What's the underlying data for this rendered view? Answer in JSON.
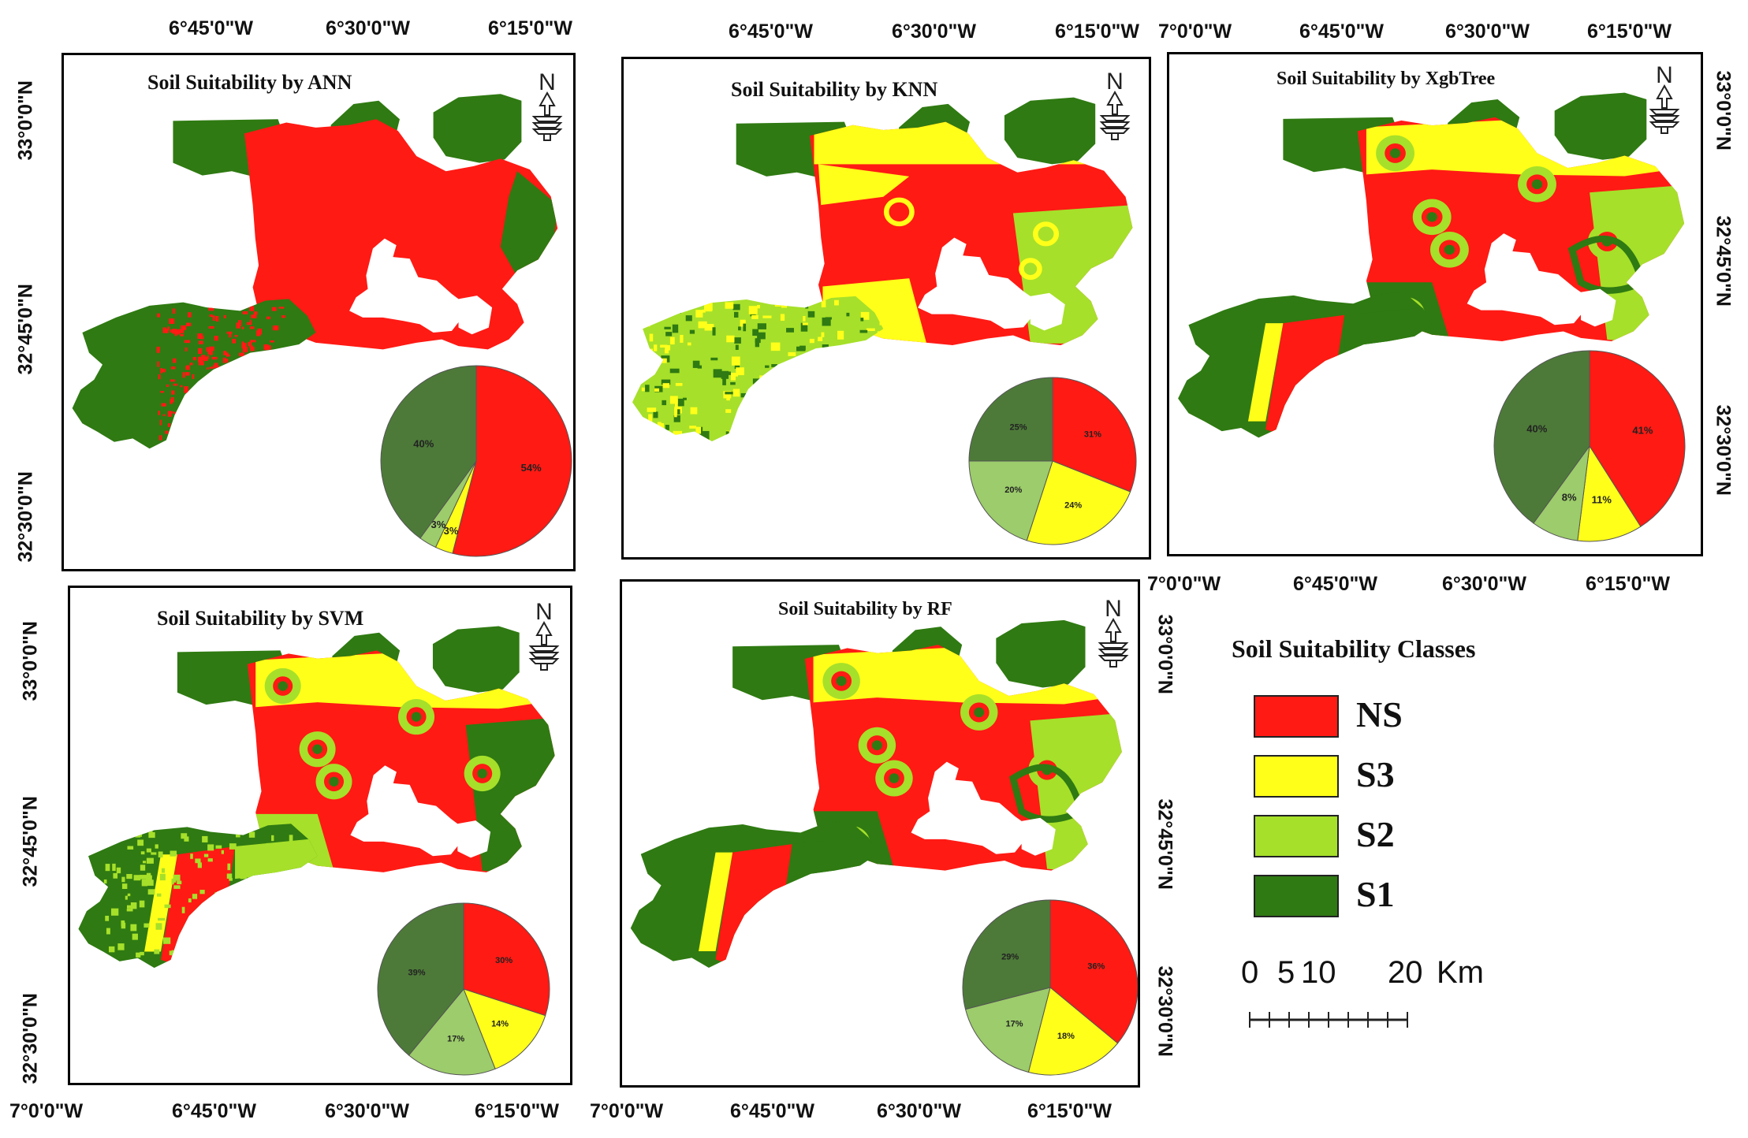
{
  "colors": {
    "NS": "#ff1a14",
    "S3": "#ffff1a",
    "S2": "#a6e02a",
    "S1": "#2f7a12",
    "pie_S1": "#4d7a39",
    "pie_S2": "#9ccc6b"
  },
  "panels": [
    {
      "id": "ann",
      "title": "Soil Suitability by ANN",
      "style": "ann",
      "top_lon": [
        "6°45'0\"W",
        "6°30'0\"W",
        "6°15'0\"W"
      ],
      "left_lat": [
        "33°0'0\"N",
        "32°45'0\"N",
        "32°30'0\"N"
      ],
      "pie": {
        "NS": 54,
        "S3": 3,
        "S2": 3,
        "S1": 40,
        "labels": {
          "NS": "54%",
          "S3": "3%",
          "S2": "3%",
          "S1": "40%"
        }
      }
    },
    {
      "id": "knn",
      "title": "Soil Suitability by KNN",
      "style": "knn",
      "top_lon": [
        "6°45'0\"W",
        "6°30'0\"W",
        "6°15'0\"W"
      ],
      "pie": {
        "NS": 31,
        "S3": 24,
        "S2": 20,
        "S1": 25,
        "labels": {
          "NS": "31%",
          "S3": "24%",
          "S2": "20%",
          "S1": "25%"
        }
      }
    },
    {
      "id": "xgb",
      "title": "Soil Suitability by XgbTree",
      "style": "xgb",
      "top_lon": [
        "7°0'0\"W",
        "6°45'0\"W",
        "6°30'0\"W",
        "6°15'0\"W"
      ],
      "bottom_lon": [
        "7°0'0\"W",
        "6°45'0\"W",
        "6°30'0\"W",
        "6°15'0\"W"
      ],
      "right_lat": [
        "33°0'0\"N",
        "32°45'0\"N",
        "32°30'0\"N"
      ],
      "pie": {
        "NS": 41,
        "S3": 11,
        "S2": 8,
        "S1": 40,
        "labels": {
          "NS": "41%",
          "S3": "11%",
          "S2": "8%",
          "S1": "40%"
        }
      }
    },
    {
      "id": "svm",
      "title": "Soil Suitability by SVM",
      "style": "svm",
      "left_lat": [
        "33°0'0\"N",
        "32°45'0\"N",
        "32°30'0\"N"
      ],
      "bottom_lon": [
        "7°0'0\"W",
        "6°45'0\"W",
        "6°30'0\"W",
        "6°15'0\"W"
      ],
      "pie": {
        "NS": 30,
        "S3": 14,
        "S2": 17,
        "S1": 39,
        "labels": {
          "NS": "30%",
          "S3": "14%",
          "S2": "17%",
          "S1": "39%"
        }
      }
    },
    {
      "id": "rf",
      "title": "Soil Suitability by RF",
      "style": "rf",
      "right_lat": [
        "33°0'0\"N",
        "32°45'0\"N",
        "32°30'0\"N"
      ],
      "bottom_lon": [
        "7°0'0\"W",
        "6°45'0\"W",
        "6°30'0\"W",
        "6°15'0\"W"
      ],
      "pie": {
        "NS": 36,
        "S3": 18,
        "S2": 17,
        "S1": 29,
        "labels": {
          "NS": "36%",
          "S3": "18%",
          "S2": "17%",
          "S1": "29%"
        }
      }
    }
  ],
  "north_letter": "N",
  "legend": {
    "title": "Soil Suitability Classes",
    "items": [
      {
        "key": "NS",
        "label": "NS"
      },
      {
        "key": "S3",
        "label": "S3"
      },
      {
        "key": "S2",
        "label": "S2"
      },
      {
        "key": "S1",
        "label": "S1"
      }
    ]
  },
  "scale_bar": {
    "labels": [
      "0",
      "5",
      "10",
      "20"
    ],
    "unit": "Km"
  }
}
